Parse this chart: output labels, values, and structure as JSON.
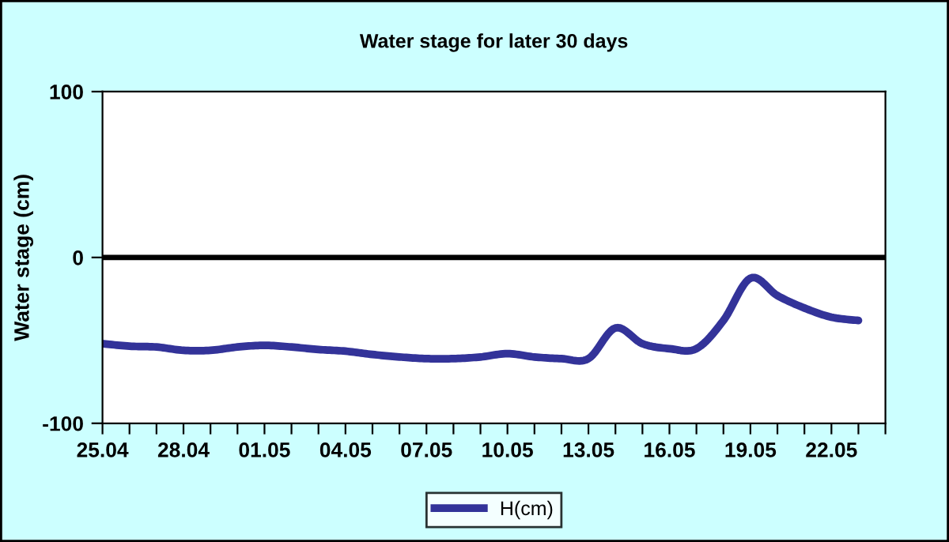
{
  "chart_data": {
    "type": "line",
    "title": "Water stage for later 30 days",
    "ylabel": "Water stage (cm)",
    "categories": [
      "25.04",
      null,
      null,
      "28.04",
      null,
      null,
      "01.05",
      null,
      null,
      "04.05",
      null,
      null,
      "07.05",
      null,
      null,
      "10.05",
      null,
      null,
      "13.05",
      null,
      null,
      "16.05",
      null,
      null,
      "19.05",
      null,
      null,
      "22.05",
      null,
      null
    ],
    "series": [
      {
        "name": "H(cm)",
        "color": "#333399",
        "values": [
          -52,
          -53.5,
          -54,
          -56,
          -56,
          -54,
          -53,
          -54,
          -55.5,
          -56.5,
          -58.5,
          -60,
          -61,
          -61,
          -60,
          -58,
          -60,
          -61,
          -61,
          -42.5,
          -52,
          -55,
          -55,
          -38,
          -12.5,
          -23,
          -30.5,
          -36,
          -38,
          null
        ]
      }
    ],
    "ylim": [
      -100,
      100
    ],
    "yticks": [
      -100,
      0,
      100
    ],
    "grid": false,
    "legend": "bottom",
    "marker": "none",
    "line_style": "solid",
    "ref_lines": [
      {
        "axis": "y",
        "value": 0,
        "color": "#000000"
      }
    ]
  }
}
